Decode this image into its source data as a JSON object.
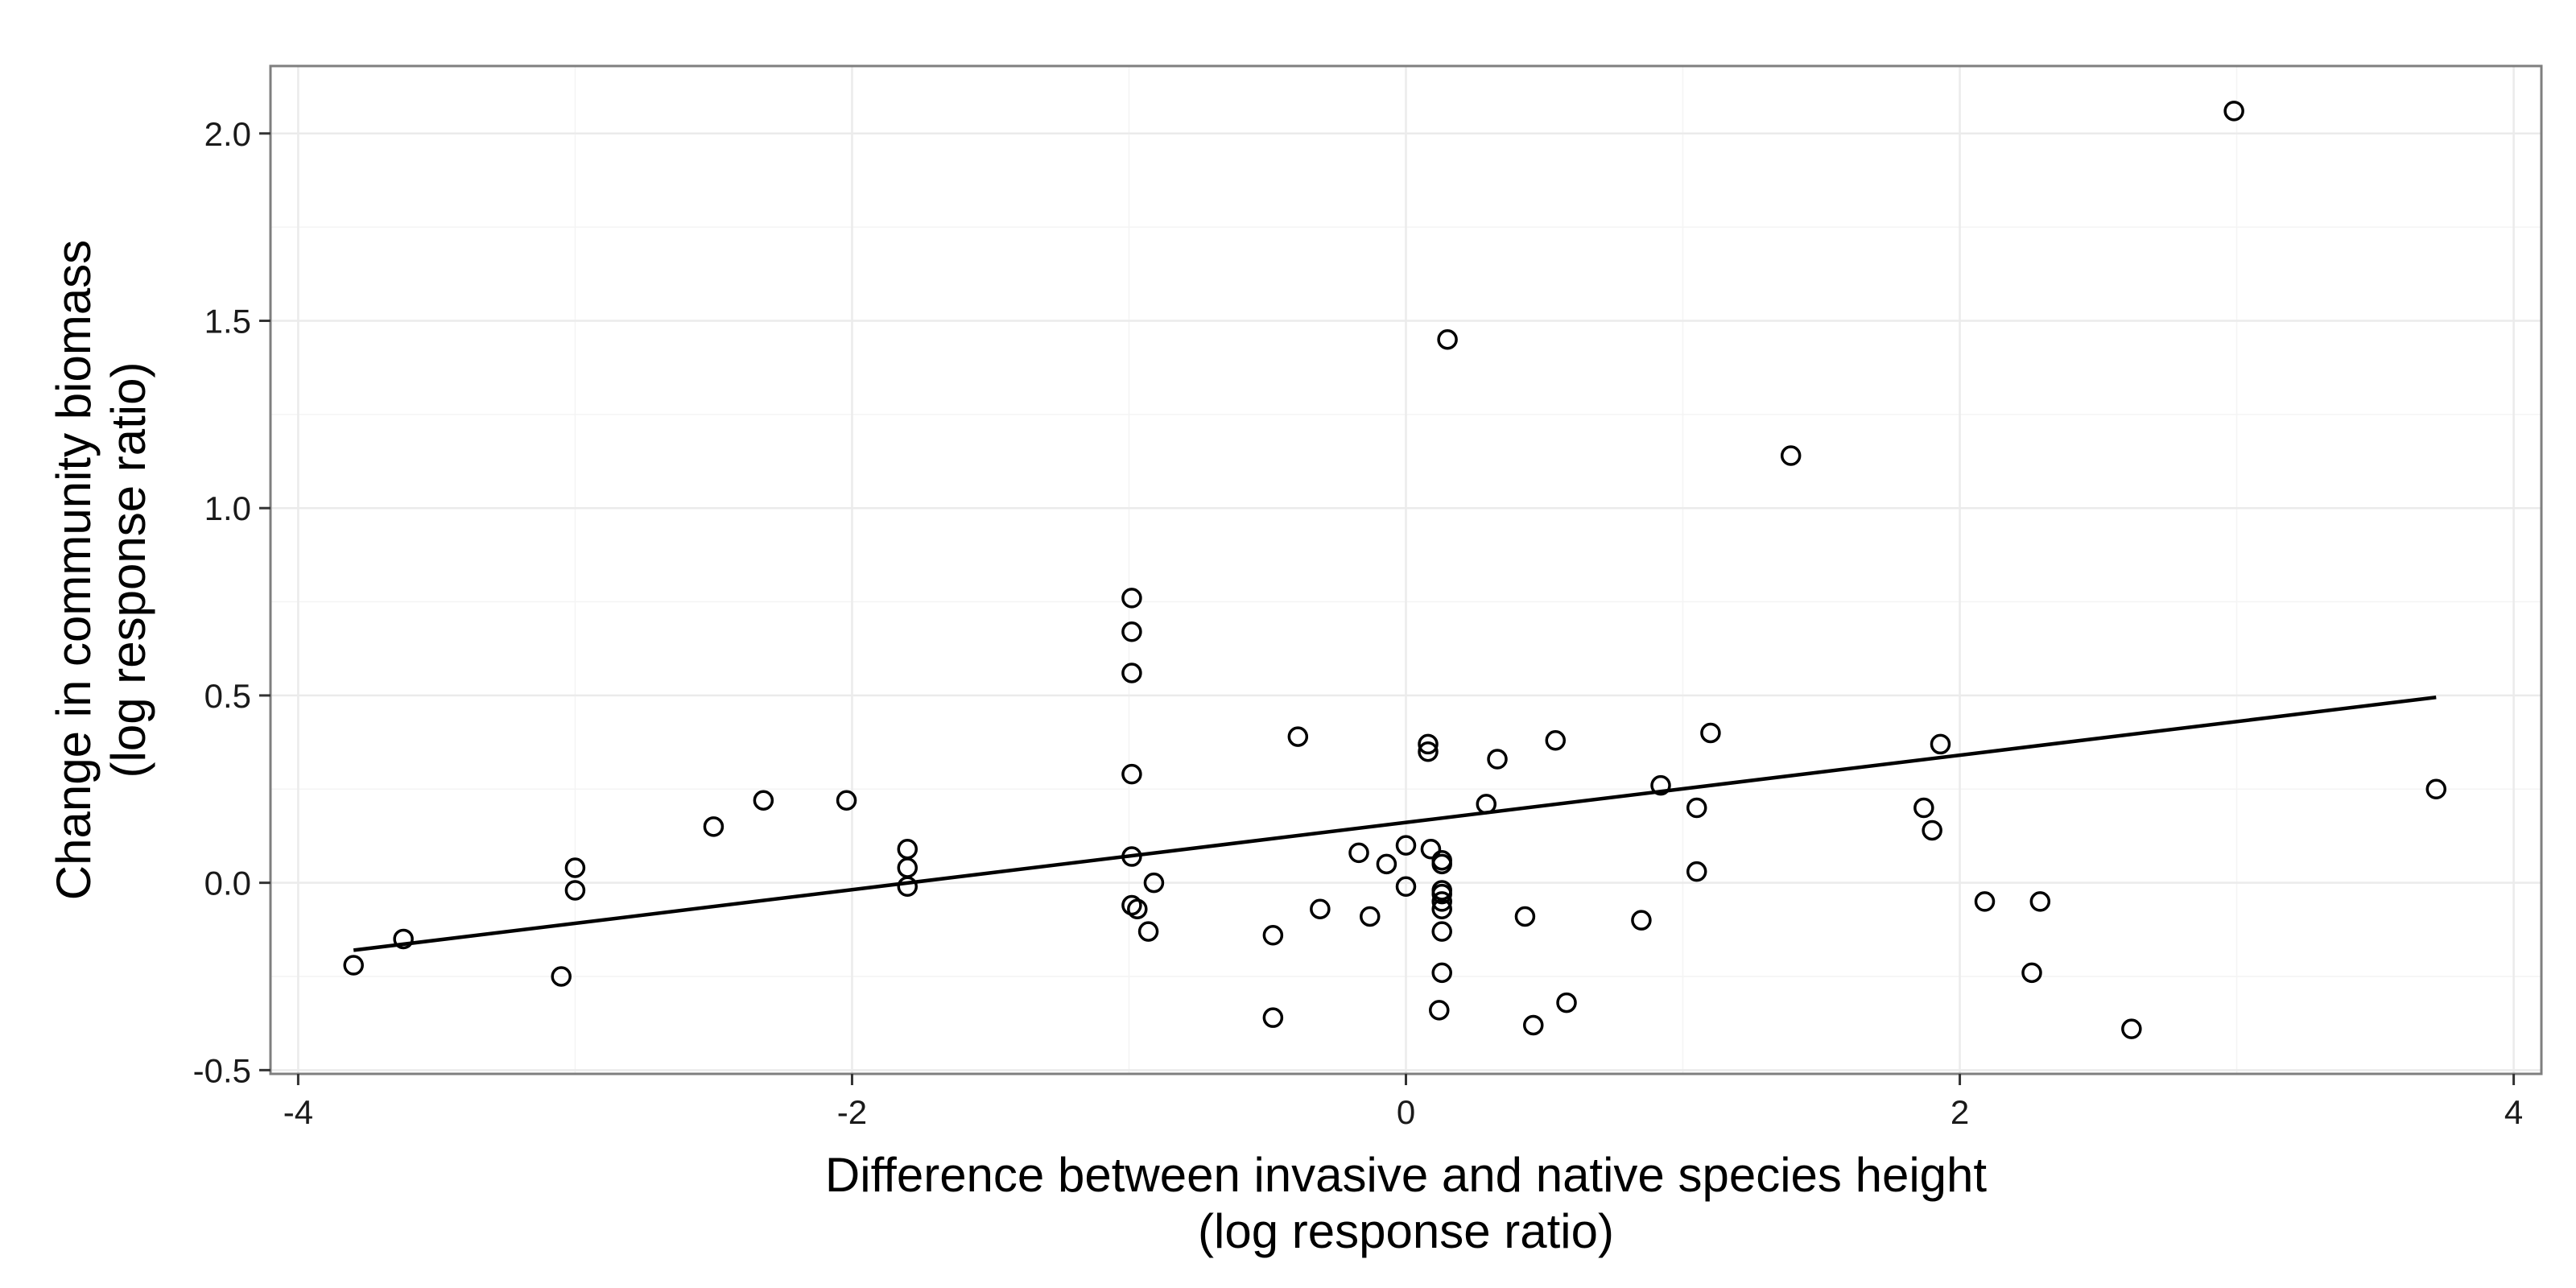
{
  "chart_data": {
    "type": "scatter",
    "title": "",
    "xlabel": [
      "Difference between invasive and native species height",
      "(log response ratio)"
    ],
    "ylabel": [
      "Change in community biomass",
      "(log response ratio)"
    ],
    "xlim": [
      -4.1,
      4.1
    ],
    "ylim": [
      -0.51,
      2.18
    ],
    "xticks": [
      -4,
      -2,
      0,
      2,
      4
    ],
    "xtick_labels": [
      "-4",
      "-2",
      "0",
      "2",
      "4"
    ],
    "yticks": [
      -0.5,
      0.0,
      0.5,
      1.0,
      1.5,
      2.0
    ],
    "ytick_labels": [
      "-0.5",
      "0.0",
      "0.5",
      "1.0",
      "1.5",
      "2.0"
    ],
    "grid": true,
    "colors": {
      "panel_border": "#7f7f7f",
      "grid": "#ebebeb",
      "points": "#000000",
      "line": "#000000"
    },
    "series": [
      {
        "points": [
          [
            -3.8,
            -0.22
          ],
          [
            -3.62,
            -0.15
          ],
          [
            -3.05,
            -0.25
          ],
          [
            -3.0,
            0.04
          ],
          [
            -3.0,
            -0.02
          ],
          [
            -2.5,
            0.15
          ],
          [
            -2.32,
            0.22
          ],
          [
            -2.02,
            0.22
          ],
          [
            -1.8,
            0.09
          ],
          [
            -1.8,
            0.04
          ],
          [
            -1.8,
            -0.01
          ],
          [
            -0.99,
            0.76
          ],
          [
            -0.99,
            0.67
          ],
          [
            -0.99,
            0.56
          ],
          [
            -0.99,
            0.29
          ],
          [
            -0.99,
            0.07
          ],
          [
            -0.99,
            -0.06
          ],
          [
            -0.97,
            -0.07
          ],
          [
            -0.93,
            -0.13
          ],
          [
            -0.91,
            0.0
          ],
          [
            -0.48,
            -0.14
          ],
          [
            -0.48,
            -0.36
          ],
          [
            -0.39,
            0.39
          ],
          [
            -0.31,
            -0.07
          ],
          [
            -0.17,
            0.08
          ],
          [
            -0.13,
            -0.09
          ],
          [
            -0.07,
            0.05
          ],
          [
            0.0,
            0.1
          ],
          [
            0.0,
            -0.01
          ],
          [
            0.08,
            0.37
          ],
          [
            0.08,
            0.35
          ],
          [
            0.09,
            0.09
          ],
          [
            0.13,
            0.06
          ],
          [
            0.13,
            0.05
          ],
          [
            0.13,
            -0.02
          ],
          [
            0.13,
            -0.03
          ],
          [
            0.13,
            -0.05
          ],
          [
            0.13,
            -0.07
          ],
          [
            0.13,
            -0.13
          ],
          [
            0.13,
            -0.24
          ],
          [
            0.12,
            -0.34
          ],
          [
            0.15,
            1.45
          ],
          [
            0.29,
            0.21
          ],
          [
            0.33,
            0.33
          ],
          [
            0.43,
            -0.09
          ],
          [
            0.46,
            -0.38
          ],
          [
            0.54,
            0.38
          ],
          [
            0.58,
            -0.32
          ],
          [
            0.85,
            -0.1
          ],
          [
            0.92,
            0.26
          ],
          [
            1.05,
            0.2
          ],
          [
            1.05,
            0.03
          ],
          [
            1.1,
            0.4
          ],
          [
            1.39,
            1.14
          ],
          [
            1.87,
            0.2
          ],
          [
            1.9,
            0.14
          ],
          [
            1.93,
            0.37
          ],
          [
            2.09,
            -0.05
          ],
          [
            2.26,
            -0.24
          ],
          [
            2.29,
            -0.05
          ],
          [
            2.62,
            -0.39
          ],
          [
            2.99,
            2.06
          ],
          [
            3.72,
            0.25
          ]
        ]
      }
    ],
    "regression_line": {
      "x": [
        -3.8,
        3.72
      ],
      "y": [
        -0.18,
        0.495
      ]
    }
  }
}
